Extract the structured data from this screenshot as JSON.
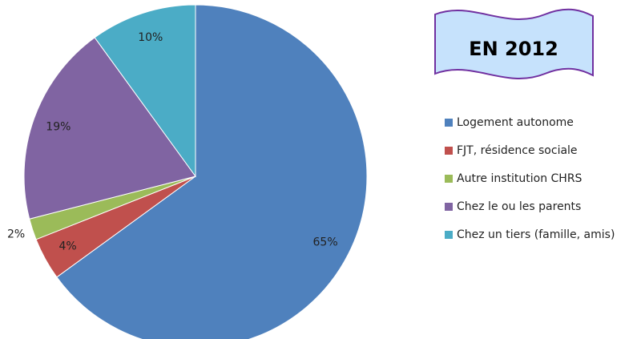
{
  "chart_data": {
    "type": "pie",
    "title": "EN 2012",
    "categories": [
      "Logement autonome",
      "FJT, résidence sociale",
      "Autre institution CHRS",
      "Chez le ou les parents",
      "Chez un tiers (famille, amis)"
    ],
    "values": [
      65,
      4,
      2,
      19,
      10
    ],
    "value_labels": [
      "65%",
      "4%",
      "2%",
      "19%",
      "10%"
    ],
    "colors": [
      "#4f81bd",
      "#c0504d",
      "#9bbb59",
      "#8064a2",
      "#4bacc6"
    ],
    "legend": "right"
  }
}
